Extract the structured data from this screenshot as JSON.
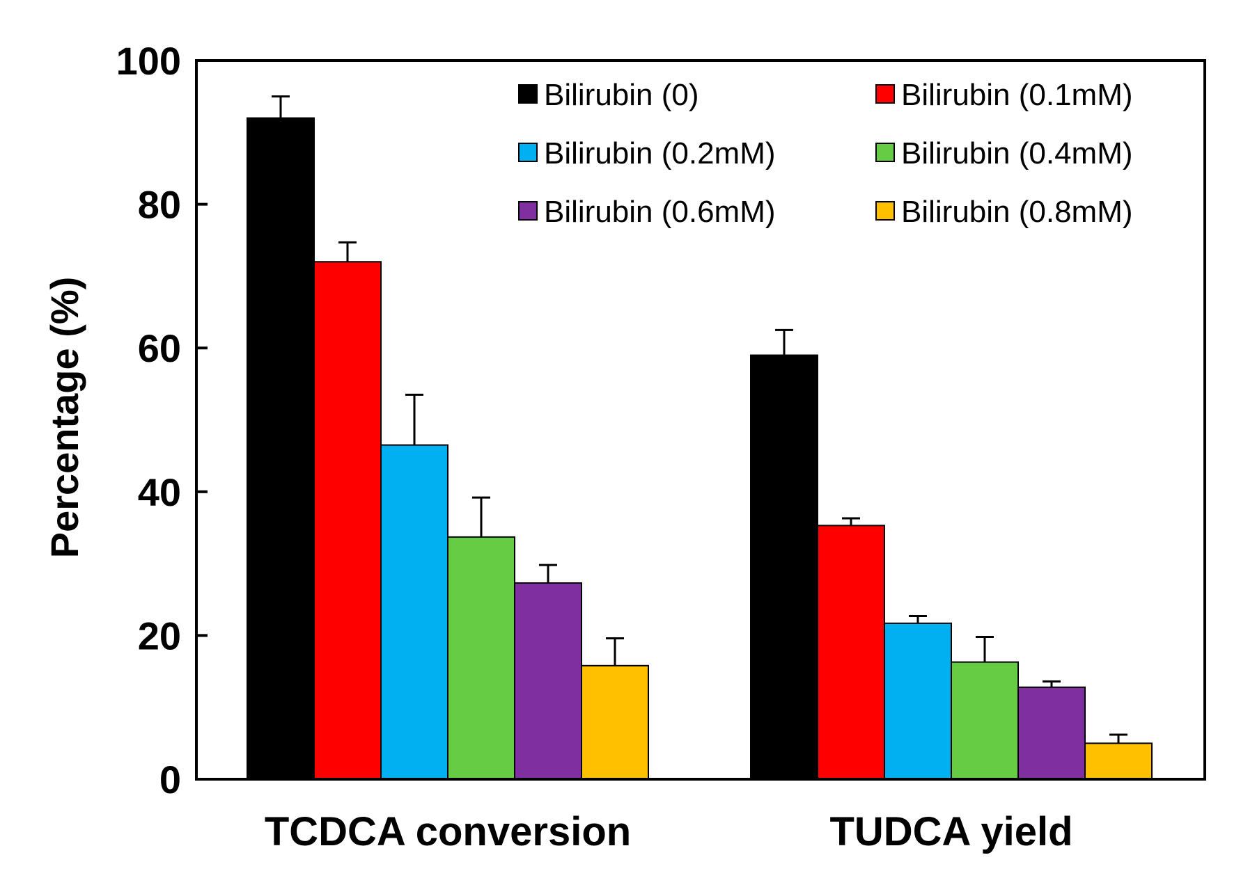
{
  "chart_data": {
    "type": "bar",
    "title": "",
    "xlabel": "",
    "ylabel": "Percentage (%)",
    "ylim": [
      0,
      100
    ],
    "yticks": [
      0,
      20,
      40,
      60,
      80,
      100
    ],
    "categories": [
      "TCDCA conversion",
      "TUDCA yield"
    ],
    "legend_position": "top-right",
    "series": [
      {
        "name": "Bilirubin (0)",
        "color": "#000000",
        "values": [
          92,
          59
        ],
        "errors": [
          3,
          3.5
        ]
      },
      {
        "name": "Bilirubin (0.1mM)",
        "color": "#ff0000",
        "values": [
          72,
          35.3
        ],
        "errors": [
          2.7,
          1
        ]
      },
      {
        "name": "Bilirubin (0.2mM)",
        "color": "#00b0f0",
        "values": [
          46.5,
          21.7
        ],
        "errors": [
          7,
          1
        ]
      },
      {
        "name": "Bilirubin (0.4mM)",
        "color": "#66cc44",
        "values": [
          33.7,
          16.3
        ],
        "errors": [
          5.5,
          3.5
        ]
      },
      {
        "name": "Bilirubin (0.6mM)",
        "color": "#7f2fa0",
        "values": [
          27.3,
          12.8
        ],
        "errors": [
          2.5,
          0.8
        ]
      },
      {
        "name": "Bilirubin (0.8mM)",
        "color": "#ffc000",
        "values": [
          15.8,
          5
        ],
        "errors": [
          3.8,
          1.2
        ]
      }
    ]
  }
}
